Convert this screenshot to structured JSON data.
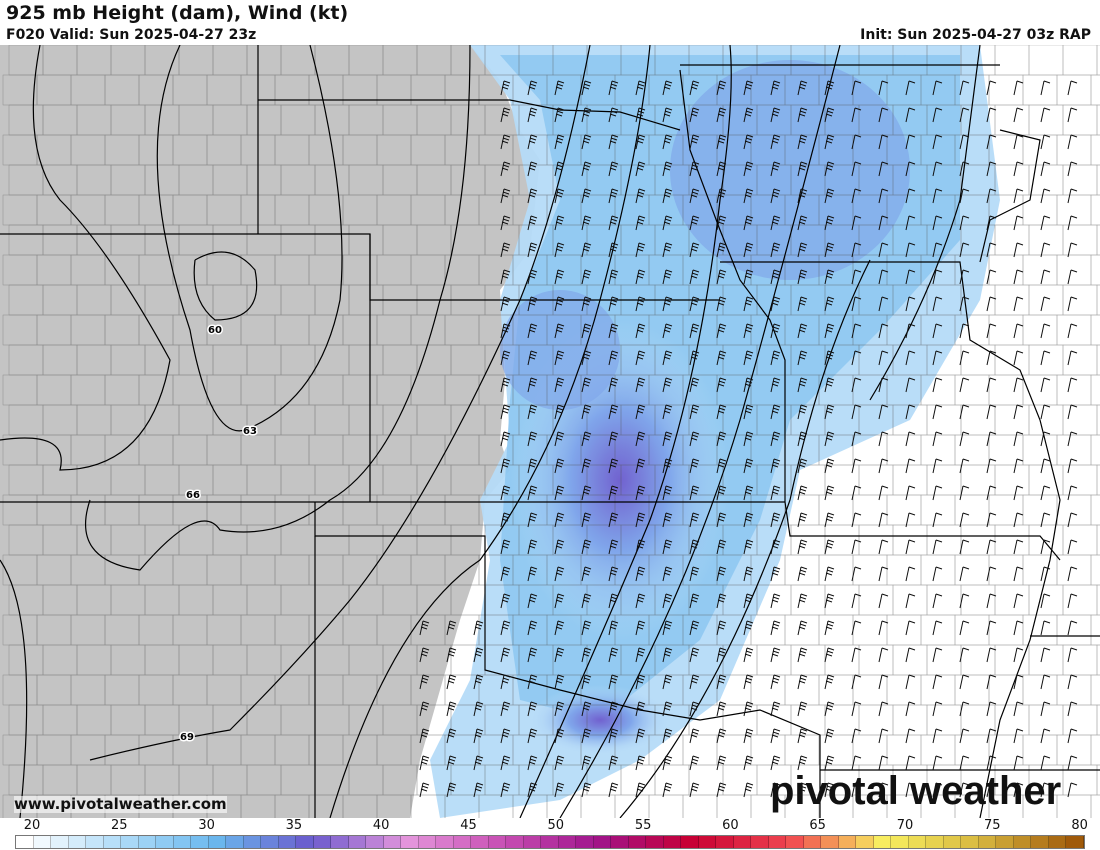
{
  "header": {
    "title": "925 mb Height (dam), Wind (kt)",
    "valid": "F020 Valid: Sun 2025-04-27 23z",
    "init": "Init: Sun 2025-04-27 03z RAP"
  },
  "map": {
    "terrain_mask_color": "#c4c4c4",
    "contour_labels": [
      "60",
      "63",
      "66",
      "69"
    ]
  },
  "branding": {
    "url": "www.pivotalweather.com",
    "logo": "pivotal weather"
  },
  "colorbar": {
    "ticks": [
      "20",
      "25",
      "30",
      "35",
      "40",
      "45",
      "50",
      "55",
      "60",
      "65",
      "70",
      "75",
      "80"
    ],
    "stops": [
      "#ffffff",
      "#b0dcf8",
      "#6ab8ee",
      "#6a5acd",
      "#e496dc",
      "#c850b4",
      "#a0148c",
      "#c80032",
      "#f04650",
      "#f8f060",
      "#d8b840",
      "#a05a0a"
    ]
  }
}
